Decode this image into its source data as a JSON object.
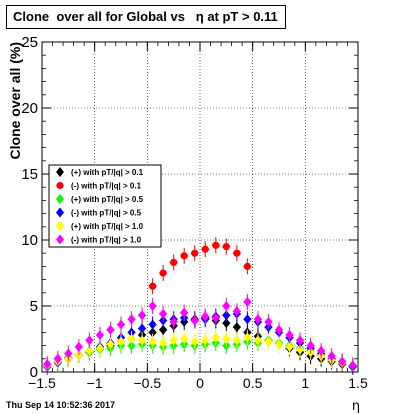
{
  "chart_data": {
    "type": "scatter",
    "title": "Clone  over all for Global vs   η at pT > 0.11",
    "xlabel": "η",
    "ylabel": "Clone  over all (%)",
    "xlim": [
      -1.5,
      1.5
    ],
    "ylim": [
      0,
      25
    ],
    "x_ticks": [
      "−1.5",
      "−1",
      "−0.5",
      "0",
      "0.5",
      "1",
      "1.5"
    ],
    "y_ticks": [
      "0",
      "5",
      "10",
      "15",
      "20",
      "25"
    ],
    "x_tick_values": [
      -1.5,
      -1,
      -0.5,
      0,
      0.5,
      1,
      1.5
    ],
    "y_tick_values": [
      0,
      5,
      10,
      15,
      20,
      25
    ],
    "grid": true,
    "legend_position": "left-center",
    "series": [
      {
        "name": "(+) with pT/|q| > 0.1",
        "color": "#000000",
        "x": [
          -1.45,
          -1.35,
          -1.25,
          -1.15,
          -1.05,
          -0.95,
          -0.85,
          -0.75,
          -0.65,
          -0.55,
          -0.45,
          -0.35,
          -0.25,
          -0.15,
          -0.05,
          0.05,
          0.15,
          0.25,
          0.35,
          0.45,
          0.55,
          0.65,
          0.75,
          0.85,
          0.95,
          1.05,
          1.15,
          1.25,
          1.35,
          1.45
        ],
        "y": [
          0.5,
          0.8,
          1.0,
          1.3,
          1.5,
          1.8,
          2.0,
          2.3,
          2.5,
          2.8,
          3.0,
          3.2,
          3.5,
          3.8,
          4.0,
          4.1,
          3.9,
          3.7,
          3.4,
          3.0,
          2.7,
          2.4,
          2.1,
          1.8,
          1.5,
          1.2,
          1.0,
          0.8,
          0.6,
          0.4
        ]
      },
      {
        "name": "(-) with pT/|q| > 0.1",
        "color": "#ff0000",
        "x": [
          -0.45,
          -0.35,
          -0.25,
          -0.15,
          -0.05,
          0.05,
          0.15,
          0.25,
          0.35,
          0.45
        ],
        "y": [
          6.5,
          7.5,
          8.3,
          8.8,
          9.0,
          9.3,
          9.6,
          9.5,
          9.0,
          8.0
        ]
      },
      {
        "name": "(+) with pT/|q| > 0.5",
        "color": "#00ff00",
        "x": [
          -1.45,
          -1.35,
          -1.25,
          -1.15,
          -1.05,
          -0.95,
          -0.85,
          -0.75,
          -0.65,
          -0.55,
          -0.45,
          -0.35,
          -0.25,
          -0.15,
          -0.05,
          0.05,
          0.15,
          0.25,
          0.35,
          0.45,
          0.55,
          0.65,
          0.75,
          0.85,
          0.95,
          1.05,
          1.15,
          1.25,
          1.35,
          1.45
        ],
        "y": [
          0.5,
          0.8,
          1.1,
          1.3,
          1.5,
          1.7,
          1.8,
          2.0,
          2.0,
          2.1,
          2.0,
          1.9,
          2.0,
          2.1,
          2.0,
          2.1,
          2.2,
          2.0,
          2.1,
          2.3,
          2.2,
          2.4,
          2.2,
          2.0,
          1.8,
          1.6,
          1.3,
          1.0,
          0.8,
          0.5
        ]
      },
      {
        "name": "(-) with pT/|q| > 0.5",
        "color": "#0000ff",
        "x": [
          -1.45,
          -1.35,
          -1.25,
          -1.15,
          -1.05,
          -0.95,
          -0.85,
          -0.75,
          -0.65,
          -0.55,
          -0.45,
          -0.35,
          -0.25,
          -0.15,
          -0.05,
          0.05,
          0.15,
          0.25,
          0.35,
          0.45,
          0.55,
          0.65,
          0.75,
          0.85,
          0.95,
          1.05,
          1.15,
          1.25,
          1.35,
          1.45
        ],
        "y": [
          0.4,
          0.7,
          1.0,
          1.3,
          1.6,
          1.9,
          2.2,
          2.6,
          3.0,
          3.3,
          3.6,
          3.9,
          4.0,
          4.1,
          3.9,
          4.0,
          4.2,
          4.3,
          4.4,
          4.0,
          3.8,
          3.4,
          3.0,
          2.6,
          2.2,
          1.8,
          1.4,
          1.0,
          0.7,
          0.4
        ]
      },
      {
        "name": "(+) with pT/|q| > 1.0",
        "color": "#ffff00",
        "x": [
          -1.45,
          -1.35,
          -1.25,
          -1.15,
          -1.05,
          -0.95,
          -0.85,
          -0.75,
          -0.65,
          -0.55,
          -0.45,
          -0.35,
          -0.25,
          -0.15,
          -0.05,
          0.05,
          0.15,
          0.25,
          0.35,
          0.45,
          0.55,
          0.65,
          0.75,
          0.85,
          0.95,
          1.05,
          1.15,
          1.25,
          1.35,
          1.45
        ],
        "y": [
          0.5,
          0.8,
          1.0,
          1.3,
          1.6,
          1.8,
          2.1,
          2.3,
          2.5,
          2.4,
          2.3,
          2.2,
          2.4,
          2.5,
          2.3,
          2.4,
          2.6,
          2.5,
          2.4,
          2.6,
          2.4,
          2.3,
          2.1,
          1.9,
          1.7,
          1.5,
          1.2,
          0.9,
          0.7,
          0.5
        ]
      },
      {
        "name": "(-) with pT/|q| > 1.0",
        "color": "#ff00ff",
        "x": [
          -1.45,
          -1.35,
          -1.25,
          -1.15,
          -1.05,
          -0.95,
          -0.85,
          -0.75,
          -0.65,
          -0.55,
          -0.45,
          -0.35,
          -0.25,
          -0.15,
          -0.05,
          0.05,
          0.15,
          0.25,
          0.35,
          0.45,
          0.55,
          0.65,
          0.75,
          0.85,
          0.95,
          1.05,
          1.15,
          1.25,
          1.35,
          1.45
        ],
        "y": [
          0.6,
          1.0,
          1.4,
          1.9,
          2.4,
          2.8,
          3.2,
          3.6,
          4.0,
          4.3,
          5.0,
          4.4,
          3.8,
          4.5,
          3.9,
          4.2,
          4.1,
          5.0,
          4.6,
          5.3,
          4.0,
          3.8,
          3.2,
          2.8,
          2.4,
          2.0,
          1.6,
          1.2,
          0.8,
          0.5
        ]
      }
    ]
  },
  "timestamp": "Thu Sep 14 10:52:36 2017"
}
